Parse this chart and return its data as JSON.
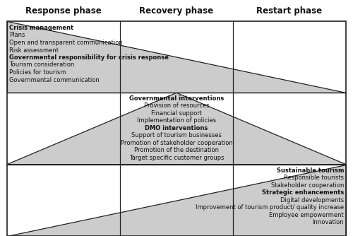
{
  "title_col1": "Response phase",
  "title_col2": "Recovery phase",
  "title_col3": "Restart phase",
  "row1_bold1": "Crisis management",
  "row1_items1": [
    "Plans",
    "Open and transparent communication",
    "Risk assessment"
  ],
  "row1_bold2": "Governmental responsibility for crisis response",
  "row1_items2": [
    "Tourism consideration",
    "Policies for tourism",
    "Governmental communication"
  ],
  "row2_bold1": "Governmental interventions",
  "row2_items1": [
    "Provision of resources",
    "Financial support",
    "Implementation of policies"
  ],
  "row2_bold2": "DMO interventions",
  "row2_items2": [
    "Support of tourism businesses",
    "Promotion of stakeholder cooperation",
    "Promotion of the destination",
    "Target specific customer groups"
  ],
  "row3_bold1": "Sustainable tourism",
  "row3_items1": [
    "Responsible tourists",
    "Stakeholder cooperation"
  ],
  "row3_bold2": "Strategic enhancements",
  "row3_items2": [
    "Digital developments",
    "Improvement of tourism product/ quality increase",
    "Employee empowerment",
    "Innovation"
  ],
  "bg_color": "#ffffff",
  "triangle_color": "#cccccc",
  "triangle_edge": "#222222",
  "grid_color": "#222222",
  "text_color": "#111111",
  "font_size_title": 8.5,
  "font_size_text": 6.0
}
